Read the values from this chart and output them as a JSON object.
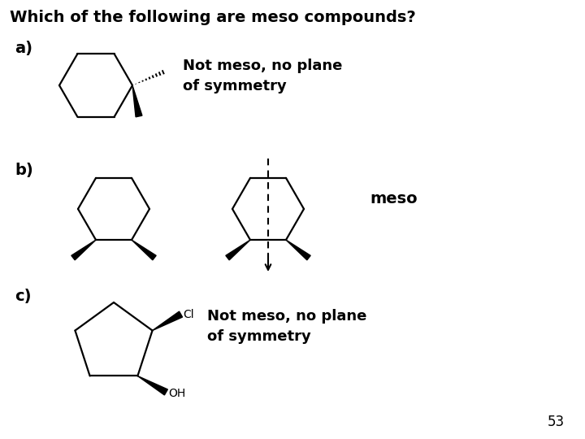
{
  "title": "Which of the following are meso compounds?",
  "title_fontsize": 14,
  "title_fontweight": "bold",
  "label_a": "a)",
  "label_b": "b)",
  "label_c": "c)",
  "label_fontsize": 14,
  "label_fontweight": "bold",
  "text_not_meso_a": "Not meso, no plane\nof symmetry",
  "text_meso_b": "meso",
  "text_not_meso_c": "Not meso, no plane\nof symmetry",
  "annotation_fontsize": 13,
  "annotation_fontweight": "bold",
  "page_number": "53",
  "bg_color": "#ffffff",
  "line_color": "#000000"
}
